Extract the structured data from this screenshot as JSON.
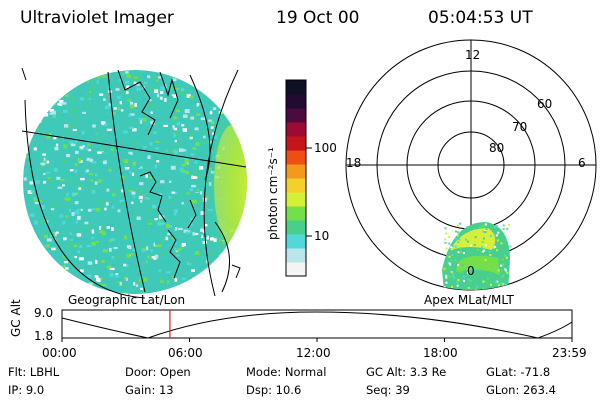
{
  "header": {
    "title": "Ultraviolet Imager",
    "date": "19 Oct 00",
    "time": "05:04:53 UT"
  },
  "colorbar": {
    "unit_label": "photon cm⁻²s⁻¹",
    "tick_100": "100",
    "tick_10": "10",
    "colors": [
      "#f4f4f4",
      "#b8e6ec",
      "#52d8d8",
      "#49cf8d",
      "#73e04a",
      "#d6f03a",
      "#f3d02a",
      "#f39a1c",
      "#ef4d12",
      "#c6141b",
      "#9c0a36",
      "#4d0a3e",
      "#220a30",
      "#101025"
    ]
  },
  "geo_panel": {
    "label": "Geographic Lat/Lon"
  },
  "polar_panel": {
    "label": "Apex MLat/MLT",
    "mlt_12": "12",
    "mlt_18": "18",
    "mlt_6": "6",
    "mlt_0": "0",
    "lat_60": "60",
    "lat_70": "70",
    "lat_80": "80"
  },
  "altitude_plot": {
    "ylabel": "GC Alt",
    "ytick_top": "9.0",
    "ytick_bottom": "1.8",
    "xticks": [
      "00:00",
      "06:00",
      "12:00",
      "18:00",
      "23:59"
    ],
    "marker_time_hours": 5.08
  },
  "footer": {
    "flt": "Flt: LBHL",
    "ip": "IP:  9.0",
    "door": "Door: Open",
    "gain": "Gain: 13",
    "mode": "Mode: Normal",
    "dsp": "Dsp:    10.6",
    "gc_alt": "GC Alt: 3.3 Re",
    "seq": "Seq: 39",
    "glat": "GLat: -71.8",
    "glon": "GLon: 263.4"
  }
}
